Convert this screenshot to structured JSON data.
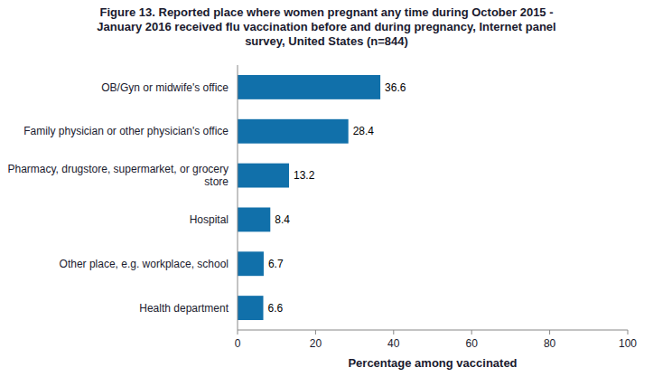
{
  "chart_data": {
    "type": "bar",
    "orientation": "horizontal",
    "title": "Figure 13. Reported place where women pregnant any time during October 2015 -\nJanuary 2016 received flu vaccination before and during pregnancy, Internet panel\nsurvey, United States (n=844)",
    "categories": [
      "Health department",
      "Other place, e.g. workplace, school",
      "Hospital",
      "Pharmacy, drugstore, supermarket, or grocery\nstore",
      "Family physician or other physician's office",
      "OB/Gyn or midwife's office"
    ],
    "values": [
      6.6,
      6.7,
      8.4,
      13.2,
      28.4,
      36.6
    ],
    "color": "#1170AA",
    "xlabel": "Percentage among vaccinated",
    "xlim": [
      0,
      100
    ],
    "xticks": [
      0,
      20,
      40,
      60,
      80,
      100
    ],
    "grid": false,
    "data_labels": true
  }
}
